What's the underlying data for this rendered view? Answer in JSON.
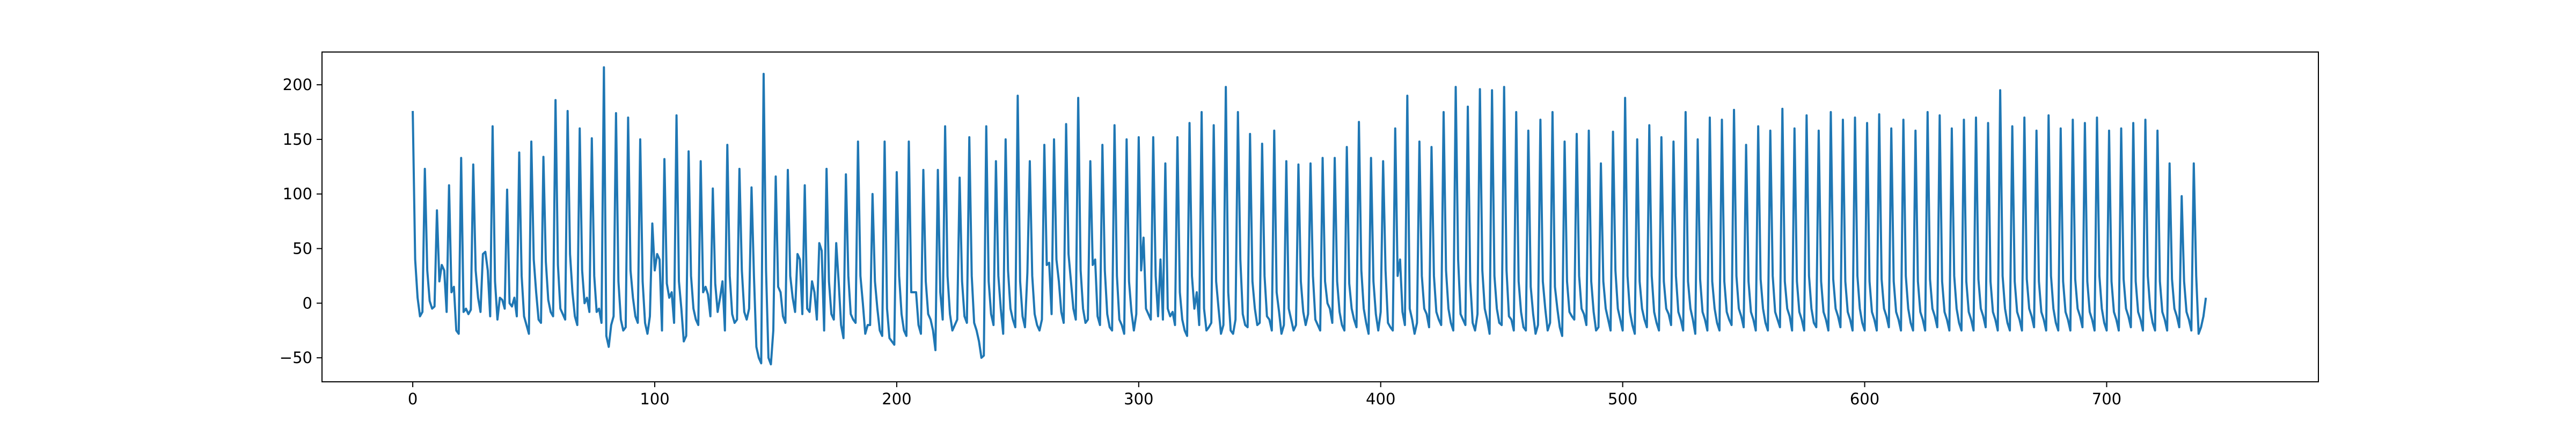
{
  "chart_data": {
    "type": "line",
    "title": "",
    "xlabel": "",
    "ylabel": "",
    "xlim": [
      -37.5,
      787.5
    ],
    "ylim": [
      -72,
      230
    ],
    "x_ticks": [
      0,
      100,
      200,
      300,
      400,
      500,
      600,
      700
    ],
    "y_ticks": [
      -50,
      0,
      50,
      100,
      150,
      200
    ],
    "x_tick_labels": [
      "0",
      "100",
      "200",
      "300",
      "400",
      "500",
      "600",
      "700"
    ],
    "y_tick_labels": [
      "−50",
      "0",
      "50",
      "100",
      "150",
      "200"
    ],
    "grid": false,
    "line_color": "#1f77b4",
    "series": [
      {
        "x_start": 0,
        "x_step": 1,
        "values": [
          176,
          40,
          5,
          -12,
          -8,
          123,
          30,
          2,
          -5,
          -3,
          85,
          20,
          35,
          30,
          -8,
          108,
          10,
          15,
          -25,
          -28,
          133,
          -8,
          -5,
          -10,
          -6,
          127,
          30,
          5,
          -8,
          45,
          47,
          30,
          -12,
          162,
          20,
          -15,
          5,
          3,
          -5,
          104,
          0,
          -3,
          5,
          -12,
          138,
          25,
          -12,
          -20,
          -28,
          148,
          40,
          10,
          -15,
          -18,
          134,
          38,
          3,
          -8,
          -12,
          186,
          35,
          -5,
          -10,
          -15,
          176,
          45,
          10,
          -12,
          -20,
          160,
          30,
          0,
          5,
          -8,
          151,
          25,
          -8,
          -5,
          -18,
          216,
          -30,
          -40,
          -20,
          -12,
          174,
          20,
          -15,
          -25,
          -22,
          170,
          30,
          5,
          -12,
          -18,
          150,
          20,
          -18,
          -28,
          -12,
          73,
          30,
          45,
          40,
          -25,
          132,
          18,
          5,
          10,
          -18,
          172,
          20,
          -5,
          -35,
          -30,
          139,
          25,
          -5,
          -15,
          -20,
          130,
          10,
          15,
          8,
          -12,
          105,
          18,
          -8,
          5,
          20,
          -25,
          145,
          25,
          -10,
          -18,
          -15,
          123,
          30,
          -8,
          -15,
          -5,
          106,
          25,
          -40,
          -50,
          -55,
          210,
          30,
          -50,
          -56,
          -25,
          116,
          15,
          10,
          -12,
          -18,
          122,
          25,
          5,
          -8,
          45,
          40,
          -10,
          108,
          -5,
          -8,
          20,
          10,
          -15,
          55,
          48,
          -25,
          123,
          20,
          -10,
          -15,
          55,
          20,
          -20,
          -32,
          118,
          25,
          -10,
          -15,
          -18,
          148,
          25,
          0,
          -28,
          -20,
          -20,
          100,
          20,
          -5,
          -25,
          -30,
          148,
          -5,
          -32,
          -35,
          -38,
          120,
          25,
          -10,
          -25,
          -30,
          148,
          10,
          10,
          10,
          -20,
          -28,
          122,
          20,
          -10,
          -15,
          -25,
          -43,
          122,
          10,
          -15,
          162,
          25,
          -10,
          -25,
          -20,
          -15,
          115,
          20,
          -12,
          -18,
          152,
          25,
          -18,
          -25,
          -35,
          -50,
          -48,
          162,
          20,
          -10,
          -20,
          130,
          25,
          -5,
          -28,
          150,
          30,
          -5,
          -15,
          -22,
          190,
          20,
          -12,
          -22,
          28,
          130,
          25,
          -10,
          -20,
          -25,
          -15,
          145,
          35,
          37,
          -10,
          150,
          40,
          20,
          -8,
          -18,
          164,
          45,
          20,
          -5,
          -15,
          188,
          30,
          -5,
          -18,
          -15,
          130,
          35,
          40,
          -12,
          -20,
          145,
          30,
          -10,
          -22,
          -25,
          163,
          25,
          -15,
          -20,
          -28,
          150,
          20,
          -8,
          -25,
          -10,
          152,
          30,
          60,
          -5,
          -10,
          -15,
          152,
          25,
          -12,
          40,
          -15,
          128,
          -5,
          -12,
          -8,
          -20,
          152,
          10,
          -15,
          -25,
          -30,
          165,
          25,
          -5,
          10,
          -20,
          175,
          -5,
          -25,
          -22,
          -18,
          163,
          20,
          -5,
          -28,
          -20,
          198,
          10,
          -25,
          -28,
          -15,
          175,
          40,
          -10,
          -20,
          -22,
          155,
          20,
          -5,
          -20,
          -18,
          146,
          25,
          -12,
          -15,
          -25,
          158,
          10,
          -8,
          -28,
          -20,
          130,
          -5,
          -15,
          -25,
          -20,
          127,
          20,
          -8,
          -20,
          -10,
          128,
          25,
          -15,
          -20,
          -25,
          133,
          20,
          0,
          -5,
          -18,
          133,
          20,
          -8,
          -20,
          -25,
          143,
          18,
          -5,
          -15,
          -22,
          166,
          30,
          -5,
          -18,
          -28,
          133,
          20,
          -10,
          -25,
          -8,
          130,
          30,
          -18,
          -22,
          -25,
          160,
          25,
          40,
          -8,
          -20,
          190,
          -5,
          -15,
          -28,
          -18,
          148,
          25,
          -5,
          -10,
          -22,
          143,
          25,
          -8,
          -15,
          -20,
          175,
          30,
          -5,
          -18,
          -25,
          198,
          40,
          -10,
          -15,
          -20,
          180,
          20,
          -18,
          -25,
          -10,
          196,
          30,
          -5,
          -15,
          -28,
          195,
          25,
          -5,
          -18,
          -20,
          198,
          30,
          -12,
          -15,
          -25,
          175,
          20,
          -8,
          -22,
          -25,
          158,
          15,
          -10,
          -28,
          -20,
          168,
          20,
          -5,
          -25,
          -18,
          175,
          15,
          -5,
          -22,
          -30,
          148,
          20,
          -8,
          -12,
          -15,
          155,
          25,
          -5,
          -10,
          -20,
          158,
          20,
          -8,
          -25,
          -22,
          128,
          20,
          -5,
          -15,
          -25,
          157,
          30,
          -5,
          -15,
          -25,
          188,
          25,
          -8,
          -20,
          -28,
          150,
          20,
          -5,
          -15,
          -22,
          163,
          25,
          -8,
          -18,
          -25,
          152,
          20,
          -5,
          -10,
          -20,
          148,
          25,
          -8,
          -15,
          -25,
          175,
          20,
          -5,
          -15,
          -28,
          150,
          22,
          -8,
          -15,
          -25,
          170,
          20,
          -5,
          -18,
          -25,
          168,
          20,
          -8,
          -15,
          -20,
          177,
          25,
          -5,
          -12,
          -22,
          145,
          20,
          -8,
          -15,
          -25,
          162,
          22,
          -5,
          -18,
          -25,
          158,
          25,
          -8,
          -15,
          -22,
          178,
          20,
          -5,
          -12,
          -25,
          160,
          20,
          -8,
          -15,
          -25,
          172,
          25,
          -5,
          -18,
          -22,
          158,
          20,
          -8,
          -15,
          -25,
          175,
          22,
          -5,
          -12,
          -22,
          168,
          20,
          -8,
          -15,
          -25,
          170,
          25,
          -5,
          -18,
          -25,
          165,
          20,
          -8,
          -15,
          -25,
          173,
          22,
          -5,
          -12,
          -22,
          160,
          20,
          -8,
          -15,
          -25,
          168,
          25,
          -5,
          -18,
          -25,
          158,
          20,
          -8,
          -15,
          -25,
          175,
          22,
          -5,
          -12,
          -22,
          172,
          20,
          -8,
          -15,
          -25,
          160,
          25,
          -5,
          -18,
          -25,
          168,
          20,
          -8,
          -15,
          -25,
          170,
          22,
          -5,
          -12,
          -22,
          165,
          20,
          -8,
          -15,
          -25,
          195,
          25,
          -5,
          -18,
          -25,
          162,
          20,
          -8,
          -15,
          -25,
          170,
          22,
          -5,
          -12,
          -22,
          158,
          20,
          -8,
          -15,
          -25,
          172,
          25,
          -5,
          -18,
          -25,
          160,
          20,
          -8,
          -15,
          -25,
          168,
          22,
          -5,
          -12,
          -22,
          165,
          20,
          -8,
          -15,
          -25,
          170,
          25,
          -5,
          -18,
          -25,
          158,
          20,
          -8,
          -15,
          -25,
          160,
          22,
          -5,
          -12,
          -22,
          165,
          20,
          -8,
          -15,
          -25,
          168,
          25,
          -5,
          -18,
          -25,
          158,
          20,
          -8,
          -15,
          -25,
          128,
          22,
          -5,
          -12,
          -22,
          98,
          20,
          -8,
          -15,
          -25,
          128,
          25,
          -28,
          -22,
          -12,
          5
        ]
      }
    ]
  }
}
